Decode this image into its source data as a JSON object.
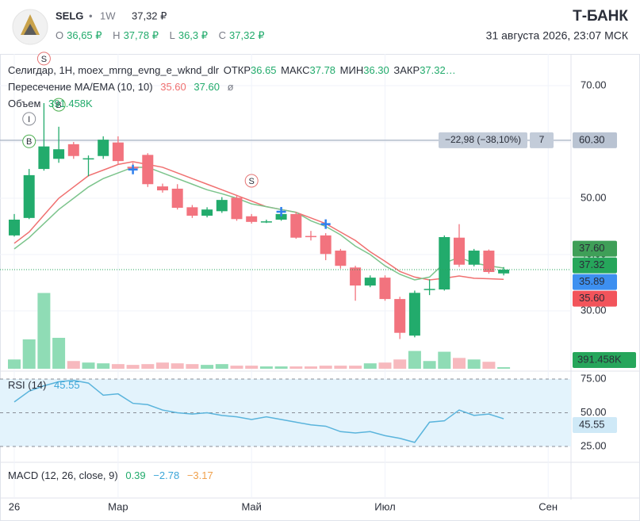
{
  "header": {
    "ticker": "SELG",
    "separator": "•",
    "interval": "1W",
    "price": "37,32 ₽",
    "ohlc": [
      {
        "key": "O",
        "value": "36,65 ₽"
      },
      {
        "key": "H",
        "value": "37,78 ₽"
      },
      {
        "key": "L",
        "value": "36,3 ₽"
      },
      {
        "key": "C",
        "value": "37,32 ₽"
      }
    ],
    "brand": "Т‑БАНК",
    "datetime": "31 августа 2026, 23:07 МСК"
  },
  "chart_data": {
    "type": "candlestick",
    "legend": {
      "symbol": "Селигдар, 1H, moex_mrng_evng_e_wknd_dlr",
      "fields": [
        {
          "key": "ОТКР",
          "value": "36.65"
        },
        {
          "key": "МАКС",
          "value": "37.78"
        },
        {
          "key": "МИН",
          "value": "36.30"
        },
        {
          "key": "ЗАКР",
          "value": "37.32…"
        }
      ]
    },
    "categories": [
      "26",
      null,
      null,
      null,
      null,
      null,
      null,
      "Мар",
      null,
      null,
      null,
      null,
      null,
      null,
      null,
      null,
      "Май",
      null,
      null,
      null,
      null,
      null,
      null,
      null,
      null,
      "Июл",
      null,
      null,
      null,
      null,
      null,
      null,
      null,
      null,
      null,
      null,
      "Сен"
    ],
    "open": [
      43.4,
      46.5,
      55.2,
      57.0,
      59.6,
      56.9,
      57.5,
      59.9,
      55.6,
      57.7,
      52.1,
      51.7,
      48.4,
      46.9,
      47.7,
      50.1,
      46.8,
      45.8,
      46.2,
      47.2,
      43.3,
      43.4,
      40.7,
      37.7,
      34.5,
      35.9,
      32.1,
      25.6,
      33.8,
      33.8,
      43.0,
      38.2,
      40.7,
      36.65,
      null,
      null,
      null
    ],
    "high": [
      47.2,
      55.2,
      66.9,
      62.7,
      60.0,
      57.6,
      61.0,
      61.0,
      56.3,
      58.0,
      52.6,
      52.5,
      48.8,
      48.4,
      50.2,
      50.6,
      47.2,
      46.2,
      47.6,
      47.6,
      44.2,
      43.8,
      41.0,
      38.0,
      36.3,
      36.3,
      32.5,
      33.6,
      35.6,
      43.4,
      45.4,
      41.0,
      40.9,
      37.78,
      null,
      null,
      null
    ],
    "low": [
      43.2,
      46.3,
      54.9,
      56.3,
      57.0,
      53.9,
      57.0,
      56.0,
      55.0,
      52.0,
      51.0,
      48.0,
      46.5,
      46.6,
      47.4,
      46.0,
      45.5,
      45.6,
      46.0,
      42.8,
      42.5,
      39.0,
      37.5,
      31.8,
      34.2,
      31.8,
      25.0,
      25.3,
      32.8,
      33.6,
      37.8,
      37.9,
      36.6,
      36.3,
      null,
      null,
      null
    ],
    "close": [
      46.2,
      54.1,
      59.2,
      58.7,
      57.5,
      57.1,
      60.4,
      56.6,
      55.3,
      52.5,
      51.4,
      48.3,
      46.9,
      48.0,
      49.7,
      46.3,
      45.8,
      45.9,
      47.2,
      43.0,
      43.2,
      40.1,
      38.0,
      34.5,
      35.9,
      32.1,
      26.1,
      33.2,
      33.9,
      43.1,
      38.2,
      40.7,
      36.9,
      37.32,
      null,
      null,
      null
    ],
    "up_color": "#22ab6c",
    "down_color": "#f2737e",
    "ylim": [
      19.72,
      75.35
    ],
    "yticks": [
      {
        "value": 70,
        "label": "70.00"
      },
      {
        "value": 60,
        "label": "60.00"
      },
      {
        "value": 50,
        "label": "50.00"
      },
      {
        "value": 40,
        "label": "40.00"
      },
      {
        "value": 30,
        "label": "30.00"
      }
    ],
    "price_line": {
      "value": 60.3,
      "label": "60.30",
      "change": "−22,98 (−38,10%)",
      "count": "7"
    },
    "price_labels": [
      {
        "value": 37.6,
        "label": "37.60",
        "color": "#3f9f58"
      },
      {
        "value": 37.32,
        "label": "37.32",
        "color": "#26a65b",
        "line": "dotted"
      },
      {
        "value": 35.89,
        "label": "35.89",
        "color": "#3d8ff0"
      },
      {
        "value": 35.6,
        "label": "35.60",
        "color": "#f2545b"
      }
    ],
    "markers": [
      {
        "label": "S",
        "index": 2,
        "value": 74.8,
        "color": "#e57373"
      },
      {
        "label": "I",
        "index": 1,
        "value": 64.1,
        "color": "#8a8d96"
      },
      {
        "label": "B",
        "index": 1,
        "value": 60.1,
        "color": "#4caf50"
      },
      {
        "label": "B",
        "index": 3,
        "value": 66.6,
        "color": "#4caf50"
      },
      {
        "label": "S",
        "index": 16,
        "value": 53.1,
        "color": "#e57373"
      }
    ],
    "cross_markers": [
      {
        "index": 8,
        "value": 55.1
      },
      {
        "index": 18,
        "value": 47.6
      },
      {
        "index": 21,
        "value": 45.4
      }
    ],
    "cross_color": "#2f80ed",
    "overlay": {
      "name": "Пересечение MA/EMA (10, 10)",
      "legend_values": [
        "35.60",
        "37.60"
      ],
      "symbol": "ø",
      "series": [
        {
          "color": "#f07070",
          "values": [
            42,
            44,
            47,
            50,
            52,
            54,
            55,
            56,
            56.5,
            56,
            55.5,
            54.5,
            53.5,
            52.5,
            51.5,
            50.5,
            49.5,
            48.5,
            48,
            47.5,
            46.5,
            45.5,
            44,
            42.5,
            40.5,
            38.8,
            37,
            36,
            35.5,
            35.8,
            36.2,
            35.8,
            35.7,
            35.6,
            null,
            null,
            null
          ]
        },
        {
          "color": "#7cc48c",
          "values": [
            41,
            43,
            45.5,
            48,
            50,
            52,
            53.5,
            54.5,
            55.5,
            55.5,
            54.5,
            53.5,
            52.5,
            51.5,
            50.8,
            50,
            49,
            48.5,
            48,
            47.5,
            46,
            45,
            43.5,
            41.5,
            40,
            38,
            36.5,
            35.5,
            36,
            38.5,
            39.5,
            38.5,
            38,
            37.6,
            null,
            null,
            null
          ]
        }
      ]
    },
    "volume": {
      "name": "Объем",
      "ylim": [
        0,
        20000
      ],
      "last_label": "391.458K",
      "up_color": "#8fdcb5",
      "down_color": "#f7b9be",
      "values": [
        2340,
        7410,
        19110,
        7800,
        1950,
        1560,
        1365,
        1170,
        975,
        1170,
        1560,
        1365,
        1170,
        975,
        1170,
        780,
        780,
        585,
        585,
        585,
        585,
        780,
        780,
        780,
        1365,
        1560,
        2340,
        4485,
        1950,
        4290,
        2730,
        2340,
        1755,
        391.458,
        null,
        null,
        null
      ]
    },
    "rsi": {
      "name": "RSI (14)",
      "color": "#5ab4dc",
      "ylim": [
        13.8,
        79.7
      ],
      "yticks": [
        {
          "value": 75,
          "label": "75.00"
        },
        {
          "value": 50,
          "label": "50.00"
        },
        {
          "value": 25,
          "label": "25.00"
        }
      ],
      "values": [
        58,
        66,
        70,
        73,
        74,
        72,
        63,
        64,
        57,
        56,
        52,
        50,
        49,
        50,
        48,
        47,
        45,
        47,
        45,
        43,
        41,
        40,
        36,
        35,
        36,
        33,
        31,
        28,
        43,
        44,
        52,
        48,
        49,
        45.55,
        null,
        null,
        null
      ]
    },
    "macd": {
      "name": "MACD (12, 26, close, 9)",
      "values": [
        {
          "text": "0.39",
          "color": "#22ab6c"
        },
        {
          "text": "−2.78",
          "color": "#3ba5d8"
        },
        {
          "text": "−3.17",
          "color": "#f0a04b"
        }
      ]
    }
  }
}
